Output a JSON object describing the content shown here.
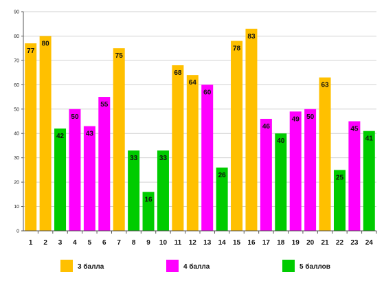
{
  "chart_data": {
    "type": "bar",
    "categories": [
      "1",
      "2",
      "3",
      "4",
      "5",
      "6",
      "7",
      "8",
      "9",
      "10",
      "11",
      "12",
      "13",
      "14",
      "15",
      "16",
      "17",
      "18",
      "19",
      "20",
      "21",
      "22",
      "23",
      "24"
    ],
    "values": [
      77,
      80,
      42,
      50,
      43,
      55,
      75,
      33,
      16,
      33,
      68,
      64,
      60,
      26,
      78,
      83,
      46,
      40,
      49,
      50,
      63,
      25,
      45,
      41
    ],
    "groups": [
      "g3",
      "g3",
      "g5",
      "g4",
      "g4",
      "g4",
      "g3",
      "g5",
      "g5",
      "g5",
      "g3",
      "g3",
      "g4",
      "g5",
      "g3",
      "g3",
      "g4",
      "g5",
      "g4",
      "g4",
      "g3",
      "g5",
      "g4",
      "g5"
    ],
    "ylim": [
      0,
      90
    ],
    "yticks": [
      0,
      10,
      20,
      30,
      40,
      50,
      60,
      70,
      80,
      90
    ],
    "grid": true,
    "legend_placement": "bottom",
    "legend": [
      {
        "key": "g3",
        "label": "3 балла",
        "color": "#FFC000"
      },
      {
        "key": "g4",
        "label": "4 балла",
        "color": "#FF00FF"
      },
      {
        "key": "g5",
        "label": "5 баллов",
        "color": "#00CC00"
      }
    ],
    "colors": {
      "gridline": "#d0d0d0",
      "axis": "#555555"
    }
  }
}
